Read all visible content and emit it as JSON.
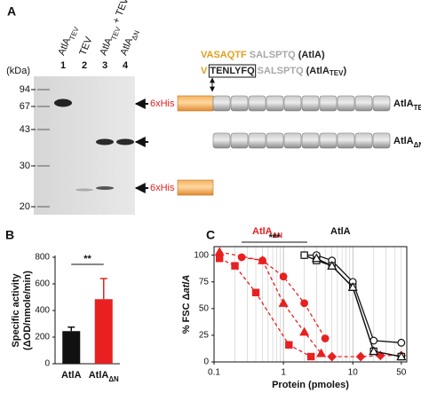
{
  "panel_a": {
    "label": "A",
    "kda_label": "(kDa)",
    "markers": [
      94,
      67,
      43,
      30,
      20
    ],
    "lanes": [
      1,
      2,
      3,
      4
    ],
    "lane_labels": [
      {
        "text": "AtlA",
        "sub": "TEV"
      },
      {
        "text": "TEV"
      },
      {
        "text": "AtlA",
        "sub": "TEV",
        "suffix": "+ TEV"
      },
      {
        "text": "AtlA",
        "sub": "ΔN"
      }
    ],
    "sequences": [
      [
        {
          "text": "VASAQTF",
          "color": "#e0a020"
        },
        {
          "text": "SALSPTQ",
          "color": "#a8a8a8"
        },
        {
          "text": "(AtlA)",
          "color": "#222222"
        }
      ],
      [
        {
          "text": "V",
          "color": "#e0a020"
        },
        {
          "text": "TENLYFQ",
          "color": "#222222",
          "boxed": true
        },
        {
          "text": "SALSPTQ",
          "color": "#a8a8a8"
        },
        {
          "text": "(AtlA",
          "color": "#222222"
        },
        {
          "text": "TEV",
          "color": "#222222",
          "sub": true
        },
        {
          "text": ")",
          "color": "#222222"
        }
      ]
    ],
    "tag_labels": [
      "6xHis",
      "6xHis"
    ],
    "constructs": [
      {
        "text": "AtlA",
        "sub": "TEV"
      },
      {
        "text": "AtlA",
        "sub": "ΔN"
      }
    ]
  },
  "chart_data": [
    {
      "type": "bar",
      "panel_label": "B",
      "y_label": [
        "Specific activity",
        "(ΔOD/nmole/min)"
      ],
      "categories": [
        "AtlA",
        "AtlA"
      ],
      "category_subscripts": [
        null,
        "ΔN"
      ],
      "values": [
        245,
        485
      ],
      "errors": [
        30,
        155
      ],
      "colors": [
        "#111111",
        "#e82020"
      ],
      "ylim": [
        0,
        800
      ],
      "yticks": [
        0,
        200,
        400,
        600,
        800
      ],
      "significance": "**"
    },
    {
      "type": "line",
      "panel_label": "C",
      "x_label": "Protein (pmoles)",
      "y_label": "% FSC Δ",
      "y_label_italic": "atlA",
      "xlog": true,
      "xlim": [
        0.1,
        60
      ],
      "xticks": [
        0.1,
        1,
        10,
        50
      ],
      "ylim": [
        0,
        108
      ],
      "yticks": [
        0,
        25,
        50,
        75,
        100
      ],
      "grid": "x",
      "significance": "***",
      "annotations": [
        {
          "text": "AtlA",
          "sub": "ΔN",
          "color": "#e82020"
        },
        {
          "text": "AtlA",
          "color": "#111111"
        }
      ],
      "series": [
        {
          "color": "#e82020",
          "marker": "triangle",
          "filled": true,
          "dashed": true,
          "x": [
            0.12,
            0.5,
            1.0,
            2,
            3.5
          ],
          "values": [
            103,
            95,
            55,
            28,
            8
          ]
        },
        {
          "color": "#e82020",
          "marker": "square",
          "filled": true,
          "dashed": true,
          "x": [
            0.12,
            0.2,
            0.4,
            1.2,
            2.5
          ],
          "values": [
            97,
            90,
            65,
            16,
            5
          ]
        },
        {
          "color": "#e82020",
          "marker": "circle",
          "filled": true,
          "dashed": true,
          "x": [
            0.25,
            0.5,
            1,
            2,
            4
          ],
          "values": [
            98,
            95,
            80,
            55,
            22
          ]
        },
        {
          "color": "#e82020",
          "marker": "diamond",
          "filled": true,
          "dashed": true,
          "x": [
            5,
            13,
            25,
            50
          ],
          "values": [
            5,
            5,
            6,
            6
          ]
        },
        {
          "color": "#111111",
          "marker": "circle",
          "filled": false,
          "dashed": false,
          "x": [
            2,
            3,
            5,
            10,
            20,
            50
          ],
          "values": [
            100,
            100,
            95,
            75,
            20,
            18
          ]
        },
        {
          "color": "#111111",
          "marker": "square",
          "filled": false,
          "dashed": false,
          "x": [
            2,
            3,
            5,
            10,
            20,
            50
          ],
          "values": [
            100,
            95,
            90,
            70,
            10,
            5
          ]
        },
        {
          "color": "#111111",
          "marker": "triangle",
          "filled": false,
          "dashed": false,
          "x": [
            3,
            5,
            10,
            20,
            50
          ],
          "values": [
            97,
            90,
            70,
            10,
            5
          ]
        }
      ]
    }
  ]
}
